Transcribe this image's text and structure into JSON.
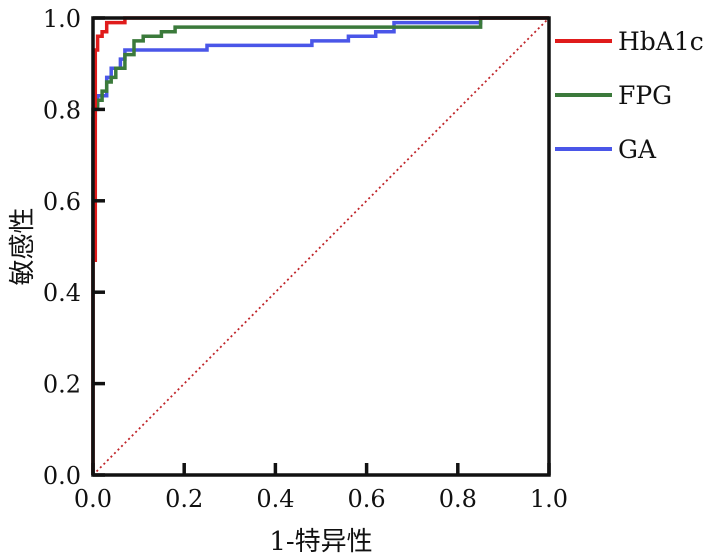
{
  "chart_data": {
    "type": "line",
    "title": "",
    "xlabel": "1-特异性",
    "ylabel": "敏感性",
    "xlim": [
      0,
      1
    ],
    "ylim": [
      0,
      1
    ],
    "x_ticks": [
      "0.0",
      "0.2",
      "0.4",
      "0.6",
      "0.8",
      "1.0"
    ],
    "y_ticks": [
      "0.0",
      "0.2",
      "0.4",
      "0.6",
      "0.8",
      "1.0"
    ],
    "grid": false,
    "legend_position": "right",
    "series": [
      {
        "name": "HbA1c",
        "color": "#e01b1b",
        "points": [
          [
            0,
            0
          ],
          [
            0,
            0.47
          ],
          [
            0.005,
            0.47
          ],
          [
            0.005,
            0.93
          ],
          [
            0.01,
            0.93
          ],
          [
            0.01,
            0.96
          ],
          [
            0.02,
            0.96
          ],
          [
            0.02,
            0.97
          ],
          [
            0.03,
            0.97
          ],
          [
            0.03,
            0.99
          ],
          [
            0.07,
            0.99
          ],
          [
            0.07,
            1.0
          ],
          [
            1.0,
            1.0
          ]
        ]
      },
      {
        "name": "FPG",
        "color": "#3b7a3b",
        "points": [
          [
            0,
            0
          ],
          [
            0,
            0.8
          ],
          [
            0.01,
            0.8
          ],
          [
            0.01,
            0.82
          ],
          [
            0.02,
            0.82
          ],
          [
            0.02,
            0.84
          ],
          [
            0.03,
            0.84
          ],
          [
            0.03,
            0.86
          ],
          [
            0.04,
            0.86
          ],
          [
            0.04,
            0.87
          ],
          [
            0.05,
            0.87
          ],
          [
            0.05,
            0.89
          ],
          [
            0.07,
            0.89
          ],
          [
            0.07,
            0.92
          ],
          [
            0.09,
            0.92
          ],
          [
            0.09,
            0.95
          ],
          [
            0.11,
            0.95
          ],
          [
            0.11,
            0.96
          ],
          [
            0.15,
            0.96
          ],
          [
            0.15,
            0.97
          ],
          [
            0.18,
            0.97
          ],
          [
            0.18,
            0.98
          ],
          [
            0.85,
            0.98
          ],
          [
            0.85,
            1.0
          ],
          [
            1.0,
            1.0
          ]
        ]
      },
      {
        "name": "GA",
        "color": "#4a56e8",
        "points": [
          [
            0,
            0
          ],
          [
            0,
            0.78
          ],
          [
            0.005,
            0.78
          ],
          [
            0.005,
            0.81
          ],
          [
            0.01,
            0.81
          ],
          [
            0.01,
            0.83
          ],
          [
            0.03,
            0.83
          ],
          [
            0.03,
            0.87
          ],
          [
            0.04,
            0.87
          ],
          [
            0.04,
            0.89
          ],
          [
            0.06,
            0.89
          ],
          [
            0.06,
            0.91
          ],
          [
            0.07,
            0.91
          ],
          [
            0.07,
            0.93
          ],
          [
            0.25,
            0.93
          ],
          [
            0.25,
            0.94
          ],
          [
            0.48,
            0.94
          ],
          [
            0.48,
            0.95
          ],
          [
            0.56,
            0.95
          ],
          [
            0.56,
            0.96
          ],
          [
            0.62,
            0.96
          ],
          [
            0.62,
            0.97
          ],
          [
            0.66,
            0.97
          ],
          [
            0.66,
            0.99
          ],
          [
            0.85,
            0.99
          ],
          [
            0.85,
            1.0
          ],
          [
            1.0,
            1.0
          ]
        ]
      }
    ],
    "reference_line": {
      "color": "#c0262b",
      "points": [
        [
          0,
          0
        ],
        [
          1,
          1
        ]
      ]
    }
  }
}
